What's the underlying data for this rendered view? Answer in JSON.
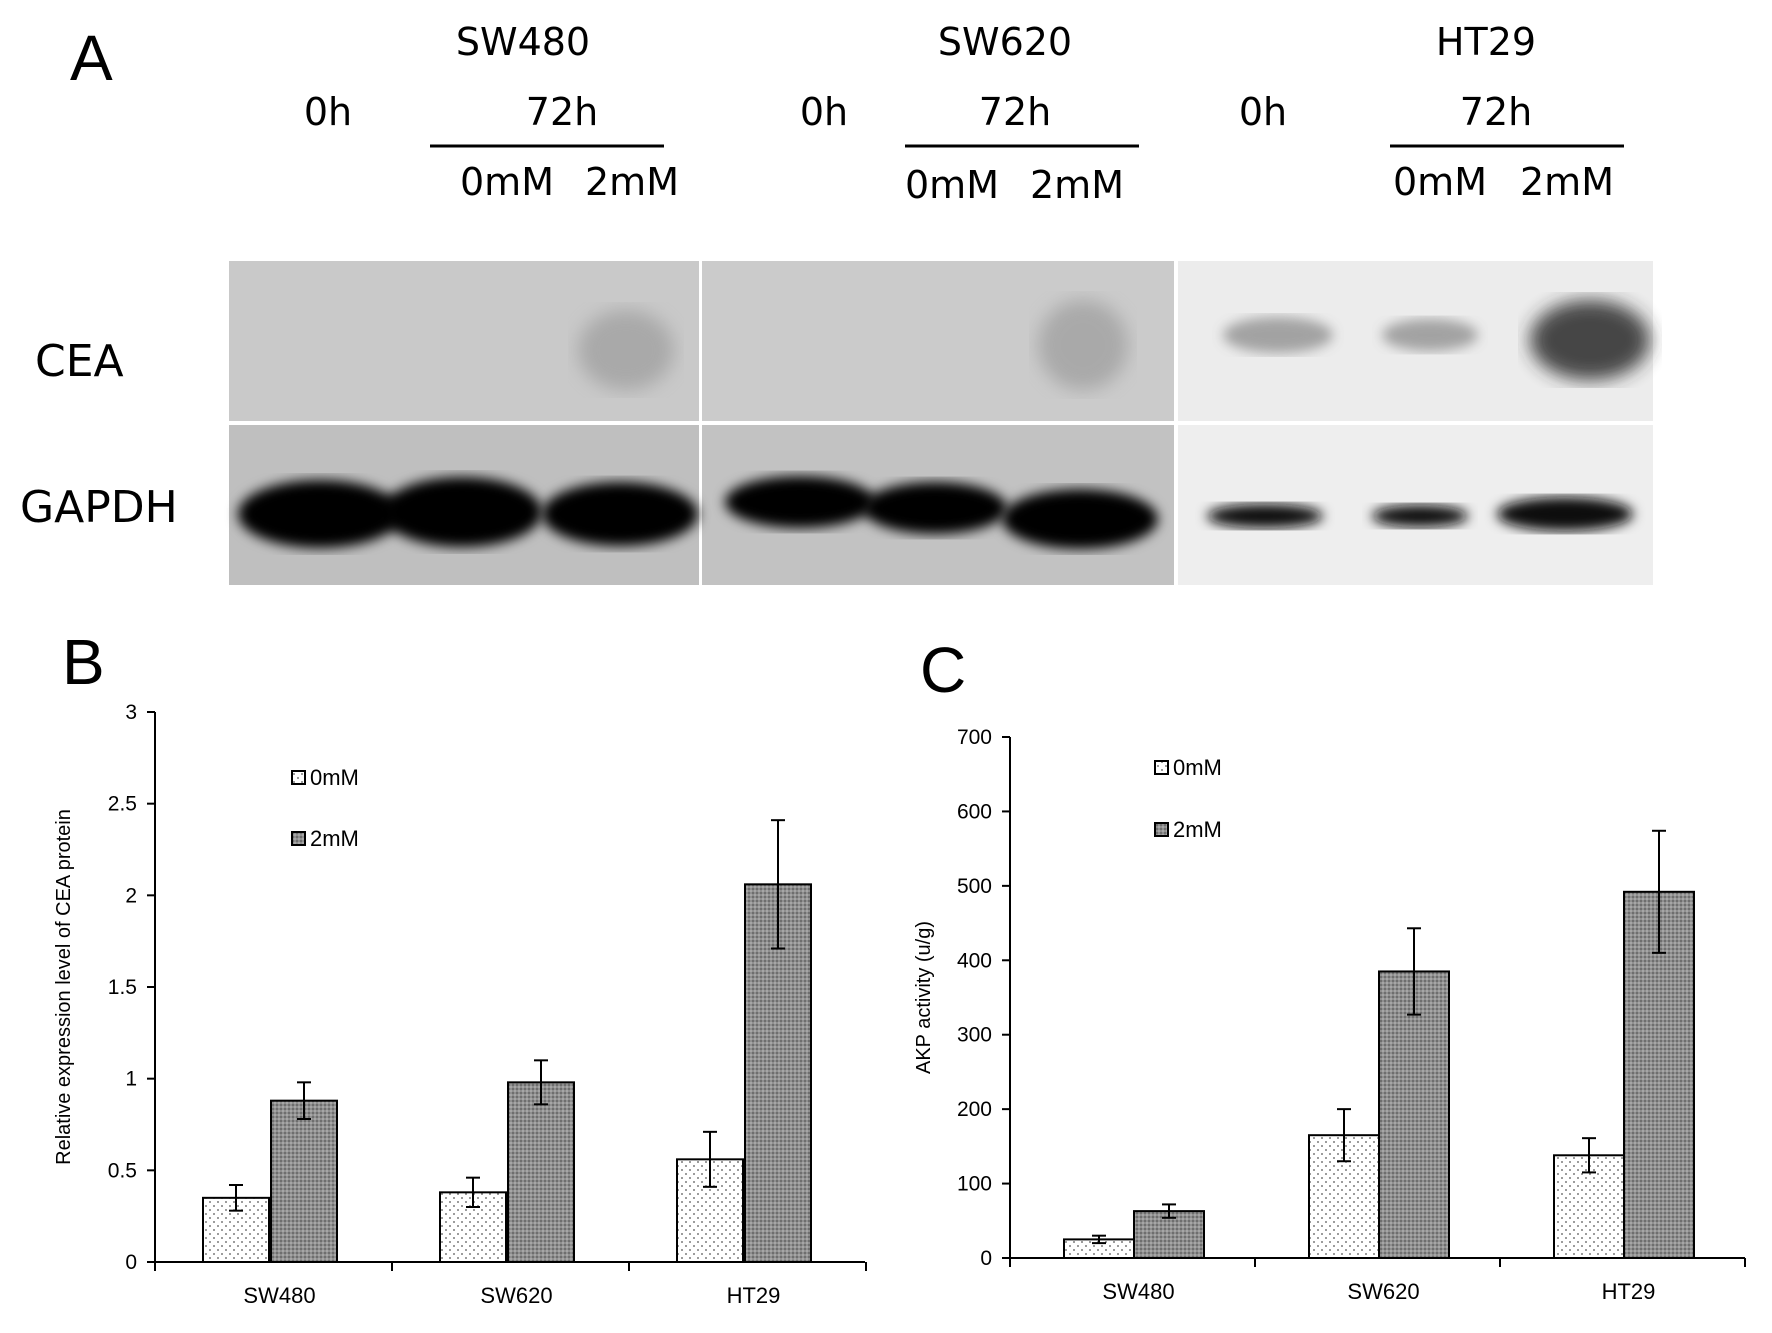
{
  "panel_a": {
    "letter": "A",
    "cell_lines": [
      {
        "name": "SW480",
        "time0": "0h",
        "time72": "72h",
        "conc_low": "0mM",
        "conc_high": "2mM"
      },
      {
        "name": "SW620",
        "time0": "0h",
        "time72": "72h",
        "conc_low": "0mM",
        "conc_high": "2mM"
      },
      {
        "name": "HT29",
        "time0": "0h",
        "time72": "72h",
        "conc_low": "0mM",
        "conc_high": "2mM"
      }
    ],
    "rows": [
      "CEA",
      "GAPDH"
    ]
  },
  "chart_data": [
    {
      "panel": "B",
      "type": "bar",
      "categories": [
        "SW480",
        "SW620",
        "HT29"
      ],
      "series": [
        {
          "name": "0mM",
          "values": [
            0.35,
            0.38,
            0.56
          ],
          "errors": [
            0.07,
            0.08,
            0.15
          ]
        },
        {
          "name": "2mM",
          "values": [
            0.88,
            0.98,
            2.06
          ],
          "errors": [
            0.1,
            0.12,
            0.35
          ]
        }
      ],
      "yticks": [
        "0",
        "0.5",
        "1",
        "1.5",
        "2",
        "2.5",
        "3"
      ],
      "ylim": [
        0,
        3
      ],
      "ylabel": "Relative expression level of CEA protein",
      "xlabel": "",
      "grid": false,
      "legend_position": "top-left"
    },
    {
      "panel": "C",
      "type": "bar",
      "categories": [
        "SW480",
        "SW620",
        "HT29"
      ],
      "series": [
        {
          "name": "0mM",
          "values": [
            25,
            165,
            138
          ],
          "errors": [
            5,
            35,
            23
          ]
        },
        {
          "name": "2mM",
          "values": [
            63,
            385,
            492
          ],
          "errors": [
            9,
            58,
            82
          ]
        }
      ],
      "yticks": [
        "0",
        "100",
        "200",
        "300",
        "400",
        "500",
        "600",
        "700"
      ],
      "ylim": [
        0,
        700
      ],
      "ylabel": "AKP activity  (u/g)",
      "xlabel": "",
      "grid": false,
      "legend_position": "top-left"
    }
  ]
}
